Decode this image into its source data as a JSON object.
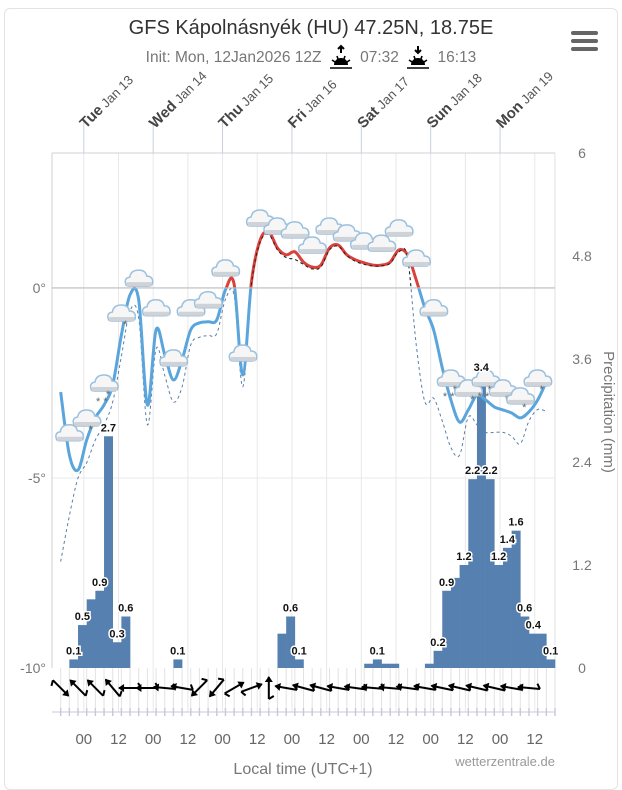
{
  "header": {
    "title": "GFS Kápolnásnyék (HU) 47.25N, 18.75E",
    "init": "Init: Mon, 12Jan2026 12Z",
    "sunrise": "07:32",
    "sunset": "16:13",
    "sunrise_icon": "sunrise-icon",
    "sunset_icon": "sunset-icon",
    "menu_icon": "hamburger-menu-icon"
  },
  "chart_data": {
    "type": "meteogram",
    "x_range": [
      "2026-01-12T13:00",
      "2026-01-19T19:00"
    ],
    "x_label": "Local time (UTC+1)",
    "x_ticks": [
      "00",
      "12",
      "00",
      "12",
      "00",
      "12",
      "00",
      "12",
      "00",
      "12",
      "00",
      "12",
      "00",
      "12"
    ],
    "days": [
      {
        "day": "Tue",
        "date": "Jan 13"
      },
      {
        "day": "Wed",
        "date": "Jan 14"
      },
      {
        "day": "Thu",
        "date": "Jan 15"
      },
      {
        "day": "Fri",
        "date": "Jan 16"
      },
      {
        "day": "Sat",
        "date": "Jan 17"
      },
      {
        "day": "Sun",
        "date": "Jan 18"
      },
      {
        "day": "Mon",
        "date": "Jan 19"
      }
    ],
    "temperature_axis": {
      "range": [
        -10,
        3.55
      ],
      "ticks": [
        "0°",
        "-5°",
        "-10°"
      ],
      "tick_values": [
        0,
        -5,
        -10
      ]
    },
    "precip_axis": {
      "label": "Precipitation (mm)",
      "range": [
        0,
        6
      ],
      "ticks": [
        "6",
        "4.8",
        "3.6",
        "2.4",
        "1.2",
        "0"
      ],
      "tick_values": [
        6,
        4.8,
        3.6,
        2.4,
        1.2,
        0
      ]
    },
    "colors": {
      "temp_below_zero": "#5aa5dc",
      "temp_above_zero": "#d9413a",
      "precip_bar": "#5680b0",
      "dashed": "#5a7fa8"
    },
    "temperature": {
      "start": "2026-01-12T16:00",
      "step_hours": 3,
      "values": [
        -2.74,
        -4.39,
        -4.79,
        -4.0,
        -3.42,
        -3.08,
        -2.55,
        -1.24,
        -0.18,
        -0.32,
        -3.08,
        -1.1,
        -1.76,
        -2.42,
        -1.89,
        -1.1,
        -0.92,
        -0.89,
        -0.84,
        -0.05,
        0.1,
        -2.29,
        0.16,
        1.26,
        1.47,
        1.05,
        0.87,
        0.95,
        0.68,
        0.55,
        0.6,
        1.05,
        1.13,
        0.87,
        0.74,
        0.66,
        0.6,
        0.6,
        0.68,
        1.0,
        0.87,
        0.21,
        -0.53,
        -1.1,
        -2.1,
        -2.95,
        -3.53,
        -3.21,
        -2.82,
        -2.95,
        -3.13,
        -3.21,
        -3.29,
        -3.42,
        -3.26,
        -2.95,
        -2.47
      ]
    },
    "temperature_dashed": {
      "start": "2026-01-12T16:00",
      "step_hours": 3,
      "values": [
        -7.2,
        -6.0,
        -5.0,
        -4.6,
        -4.0,
        -3.6,
        -3.0,
        -1.8,
        -0.6,
        -0.8,
        -3.6,
        -1.6,
        -2.3,
        -3.0,
        -2.6,
        -1.5,
        -1.3,
        -1.25,
        -1.2,
        -0.3,
        -0.2,
        -2.6,
        0.1,
        1.2,
        1.4,
        1.0,
        0.8,
        0.75,
        0.62,
        0.5,
        0.55,
        1.0,
        1.1,
        0.85,
        0.7,
        0.62,
        0.58,
        0.58,
        0.65,
        0.95,
        0.8,
        -1.5,
        -3.0,
        -2.9,
        -3.5,
        -4.2,
        -4.4,
        -3.4,
        -3.6,
        -3.8,
        -3.8,
        -3.8,
        -3.9,
        -4.1,
        -3.5,
        -3.2,
        -3.25
      ]
    },
    "precipitation_3h": [
      {
        "end": "2026-01-12T22:00",
        "value": 0.1,
        "label": "0.1"
      },
      {
        "end": "2026-01-13T01:00",
        "value": 0.5,
        "label": "0.5"
      },
      {
        "end": "2026-01-13T04:00",
        "value": 0.8,
        "label": ""
      },
      {
        "end": "2026-01-13T07:00",
        "value": 0.9,
        "label": "0.9"
      },
      {
        "end": "2026-01-13T10:00",
        "value": 2.7,
        "label": "2.7"
      },
      {
        "end": "2026-01-13T13:00",
        "value": 0.3,
        "label": "0.3"
      },
      {
        "end": "2026-01-13T16:00",
        "value": 0.6,
        "label": "0.6"
      },
      {
        "end": "2026-01-14T10:00",
        "value": 0.1,
        "label": "0.1"
      },
      {
        "end": "2026-01-15T22:00",
        "value": 0.4,
        "label": ""
      },
      {
        "end": "2026-01-16T01:00",
        "value": 0.6,
        "label": "0.6"
      },
      {
        "end": "2026-01-16T04:00",
        "value": 0.1,
        "label": "0.1"
      },
      {
        "end": "2026-01-17T04:00",
        "value": 0.05,
        "label": ""
      },
      {
        "end": "2026-01-17T07:00",
        "value": 0.1,
        "label": "0.1"
      },
      {
        "end": "2026-01-17T10:00",
        "value": 0.05,
        "label": ""
      },
      {
        "end": "2026-01-17T13:00",
        "value": 0.05,
        "label": ""
      },
      {
        "end": "2026-01-18T01:00",
        "value": 0.05,
        "label": ""
      },
      {
        "end": "2026-01-18T04:00",
        "value": 0.2,
        "label": "0.2"
      },
      {
        "end": "2026-01-18T07:00",
        "value": 0.9,
        "label": "0.9"
      },
      {
        "end": "2026-01-18T10:00",
        "value": 1.05,
        "label": ""
      },
      {
        "end": "2026-01-18T13:00",
        "value": 1.2,
        "label": "1.2"
      },
      {
        "end": "2026-01-18T16:00",
        "value": 2.2,
        "label": "2.2"
      },
      {
        "end": "2026-01-18T19:00",
        "value": 3.4,
        "label": "3.4"
      },
      {
        "end": "2026-01-18T22:00",
        "value": 2.2,
        "label": "2.2"
      },
      {
        "end": "2026-01-19T01:00",
        "value": 1.2,
        "label": "1.2"
      },
      {
        "end": "2026-01-19T04:00",
        "value": 1.4,
        "label": "1.4"
      },
      {
        "end": "2026-01-19T07:00",
        "value": 1.6,
        "label": "1.6"
      },
      {
        "end": "2026-01-19T10:00",
        "value": 0.6,
        "label": "0.6"
      },
      {
        "end": "2026-01-19T13:00",
        "value": 0.4,
        "label": "0.4"
      },
      {
        "end": "2026-01-19T16:00",
        "value": 0.4,
        "label": ""
      },
      {
        "end": "2026-01-19T19:00",
        "value": 0.1,
        "label": "0.1"
      }
    ],
    "weather_icons": {
      "start": "2026-01-12T19:00",
      "step_hours": 6,
      "types": [
        "cloud",
        "cloud-snow",
        "cloud-heavy-snow",
        "cloud-snow",
        "cloud",
        "cloud",
        "cloud",
        "cloud",
        "cloud",
        "cloud",
        "cloud",
        "cloud",
        "cloud",
        "cloud",
        "cloud",
        "cloud",
        "cloud",
        "cloud",
        "cloud",
        "cloud",
        "cloud",
        "cloud",
        "cloud-heavy-snow",
        "cloud-snow",
        "cloud-heavy-snow",
        "cloud-snow",
        "cloud-snow",
        "cloud-snow"
      ]
    },
    "wind": {
      "start": "2026-01-12T16:00",
      "step_hours": 6,
      "arrow_bearing_deg": [
        135,
        315,
        315,
        320,
        270,
        270,
        275,
        280,
        225,
        220,
        60,
        70,
        0,
        280,
        285,
        285,
        280,
        278,
        275,
        275,
        278,
        280,
        282,
        283,
        283,
        283,
        280,
        275
      ]
    }
  },
  "footer": {
    "credit": "wetterzentrale.de"
  }
}
